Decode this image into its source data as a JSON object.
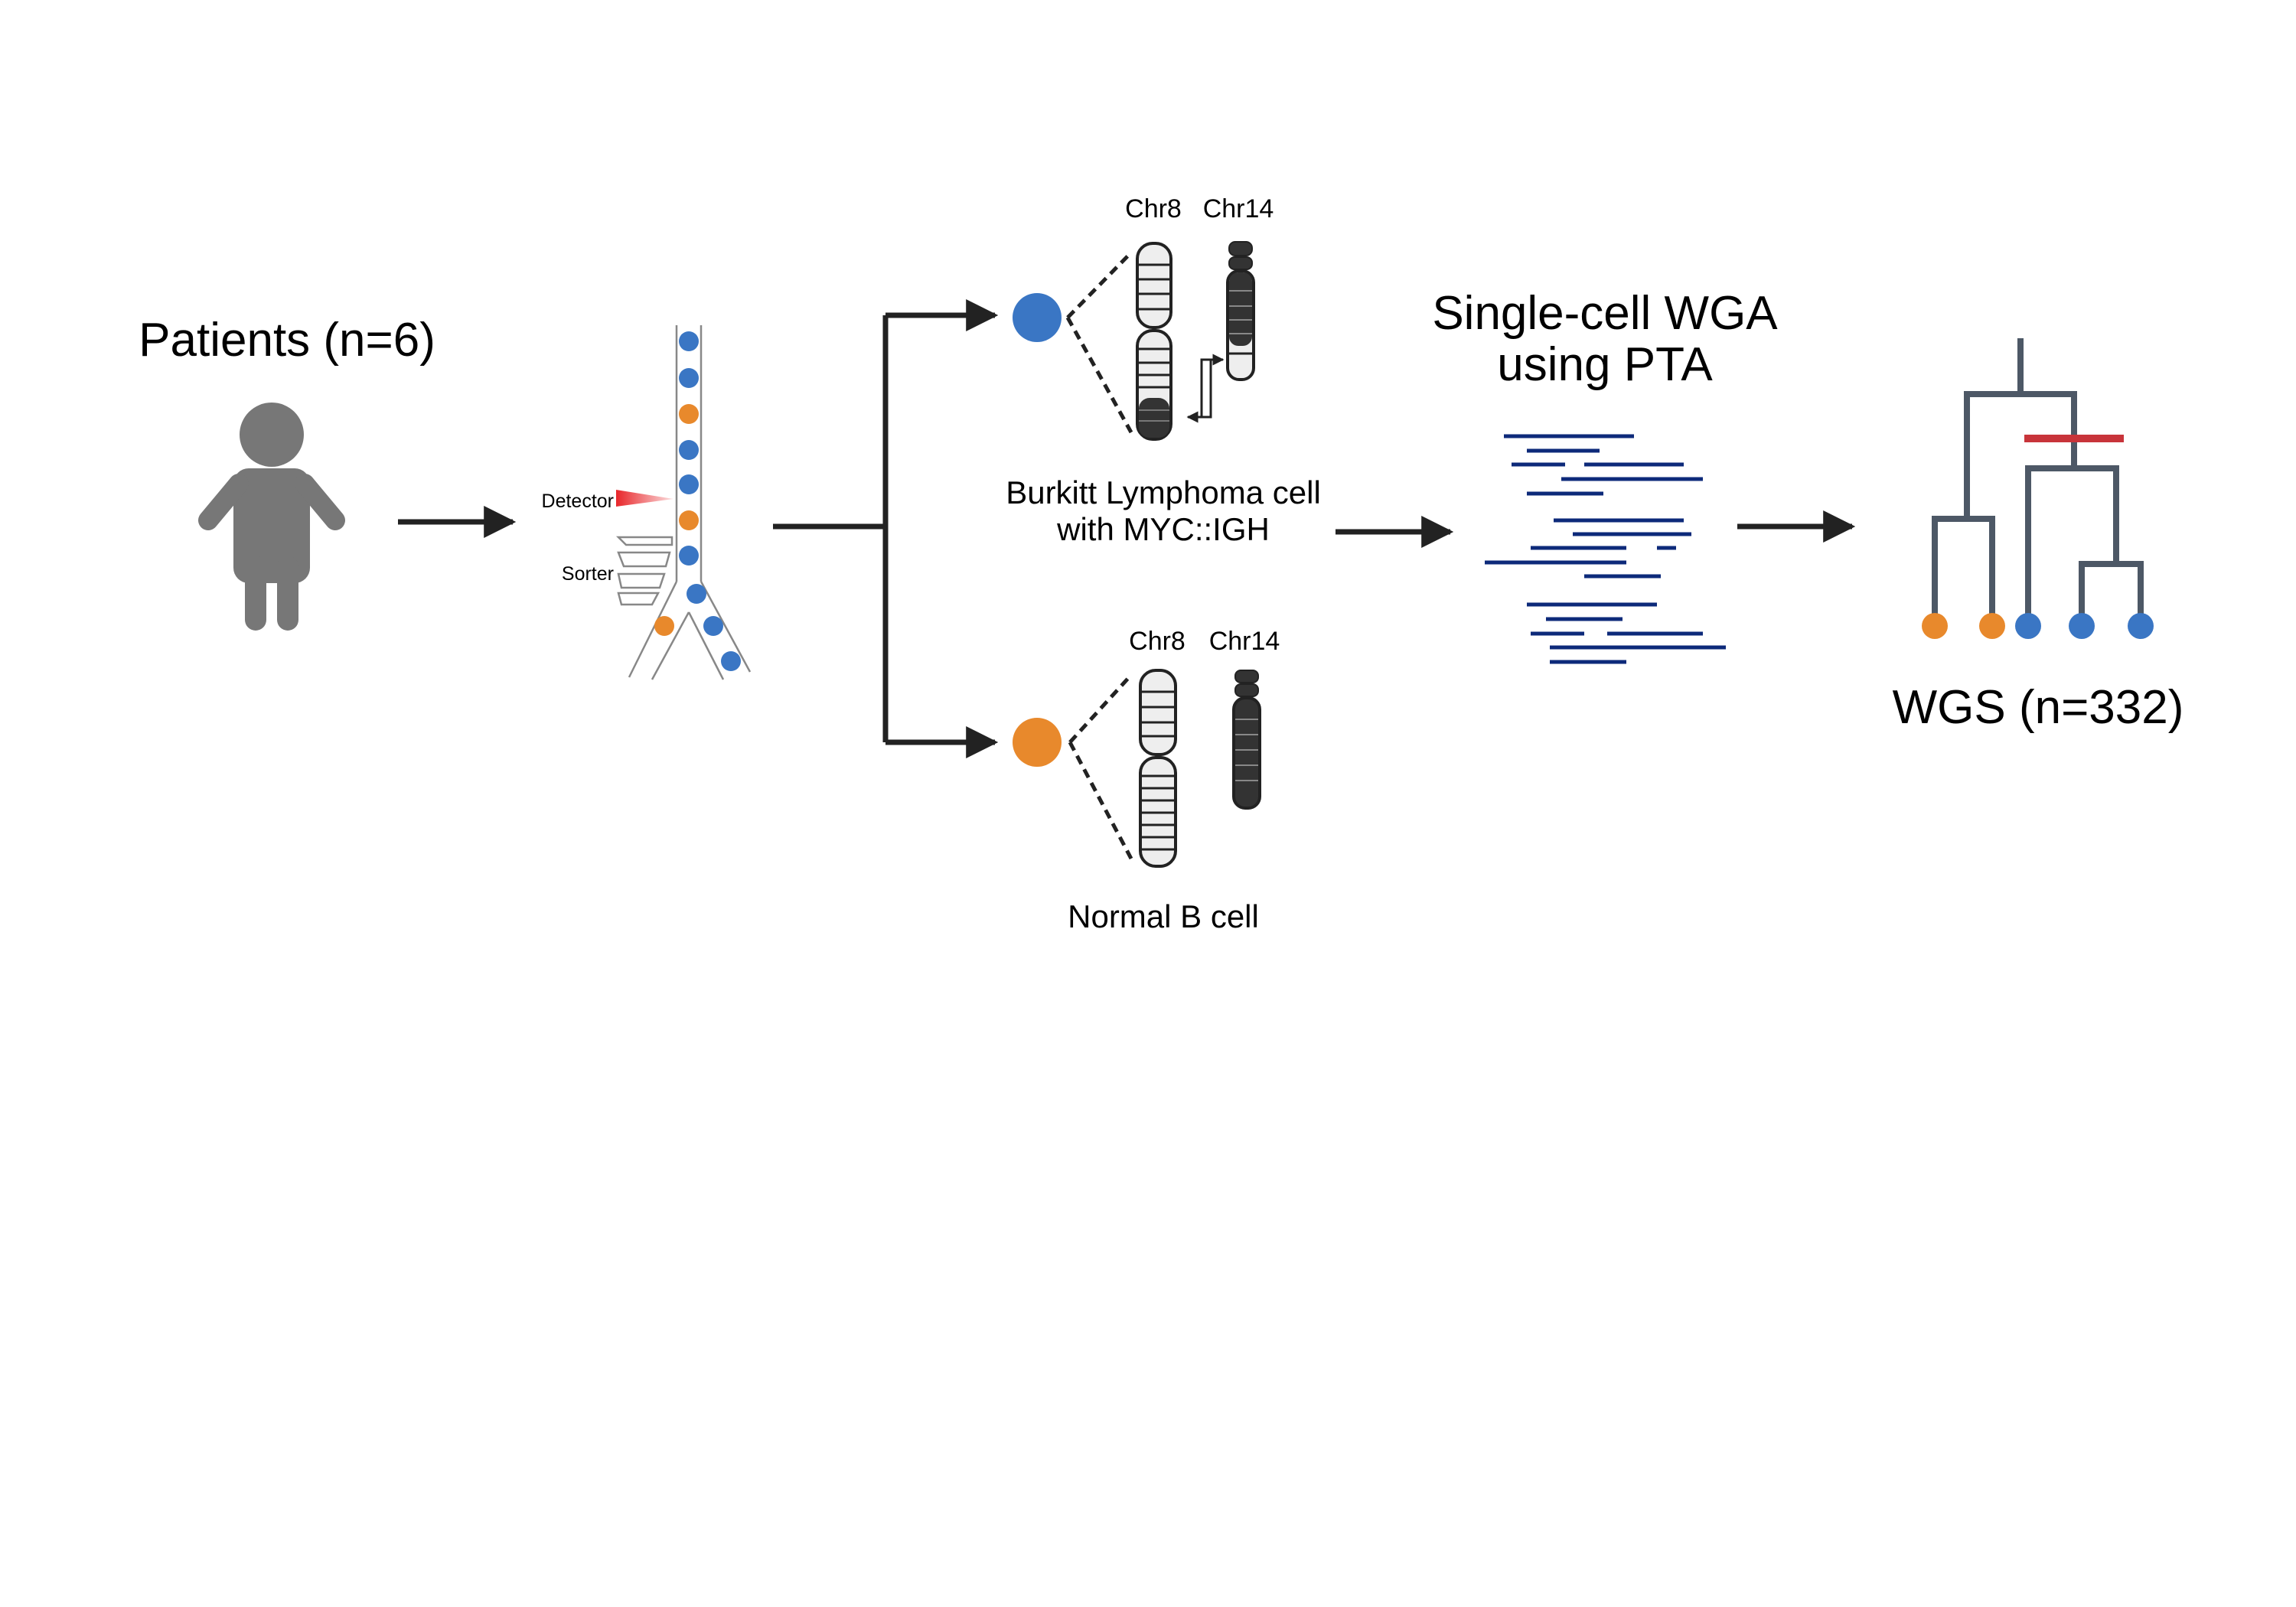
{
  "labels": {
    "patients": "Patients (n=6)",
    "detector": "Detector",
    "sorter": "Sorter",
    "chr8_top": "Chr8",
    "chr14_top": "Chr14",
    "burkitt_line1": "Burkitt Lymphoma cell",
    "burkitt_line2": "with MYC::IGH",
    "chr8_bottom": "Chr8",
    "chr14_bottom": "Chr14",
    "normal_b_cell": "Normal B cell",
    "wga_line1": "Single-cell WGA",
    "wga_line2": "using PTA",
    "wgs": "WGS (n=332)"
  },
  "colors": {
    "tumor_cell": "#3a76c4",
    "normal_cell": "#e8892c",
    "arrow": "#222222",
    "person": "#777777",
    "reads": "#0d2a7a",
    "tree": "#4d5866",
    "mutation_mark": "#c8343a",
    "detector_beam": "#e8262a"
  },
  "icons": {
    "patient": "person-icon",
    "sorter": "flow-sorter-icon",
    "reads": "sequencing-reads-icon",
    "tree": "phylogenetic-tree-icon"
  }
}
